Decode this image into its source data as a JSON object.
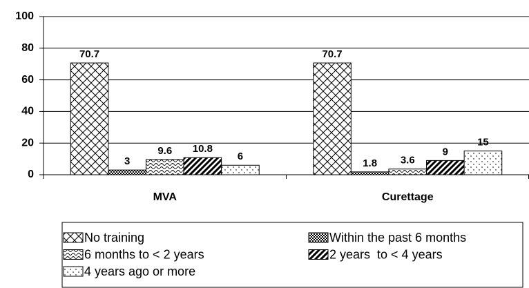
{
  "chart_data": {
    "type": "bar",
    "categories": [
      "MVA",
      "Curettage"
    ],
    "series": [
      {
        "name": "No training",
        "color": "#000000",
        "pattern": "crosshatch",
        "values": [
          70.7,
          70.7
        ]
      },
      {
        "name": "Within the past 6 months",
        "color": "#000000",
        "pattern": "checker",
        "values": [
          3,
          1.8
        ]
      },
      {
        "name": "6 months to < 2 years",
        "color": "#000000",
        "pattern": "wave",
        "values": [
          9.6,
          3.6
        ]
      },
      {
        "name": "2 years  to < 4 years",
        "color": "#000000",
        "pattern": "stripes",
        "values": [
          10.8,
          9
        ]
      },
      {
        "name": "4 years ago or more",
        "color": "#000000",
        "pattern": "dots",
        "values": [
          6,
          15
        ]
      }
    ],
    "ylim": [
      0,
      100
    ],
    "yticks": [
      0,
      20,
      40,
      60,
      80,
      100
    ],
    "grid": true,
    "legend": "bottom"
  }
}
